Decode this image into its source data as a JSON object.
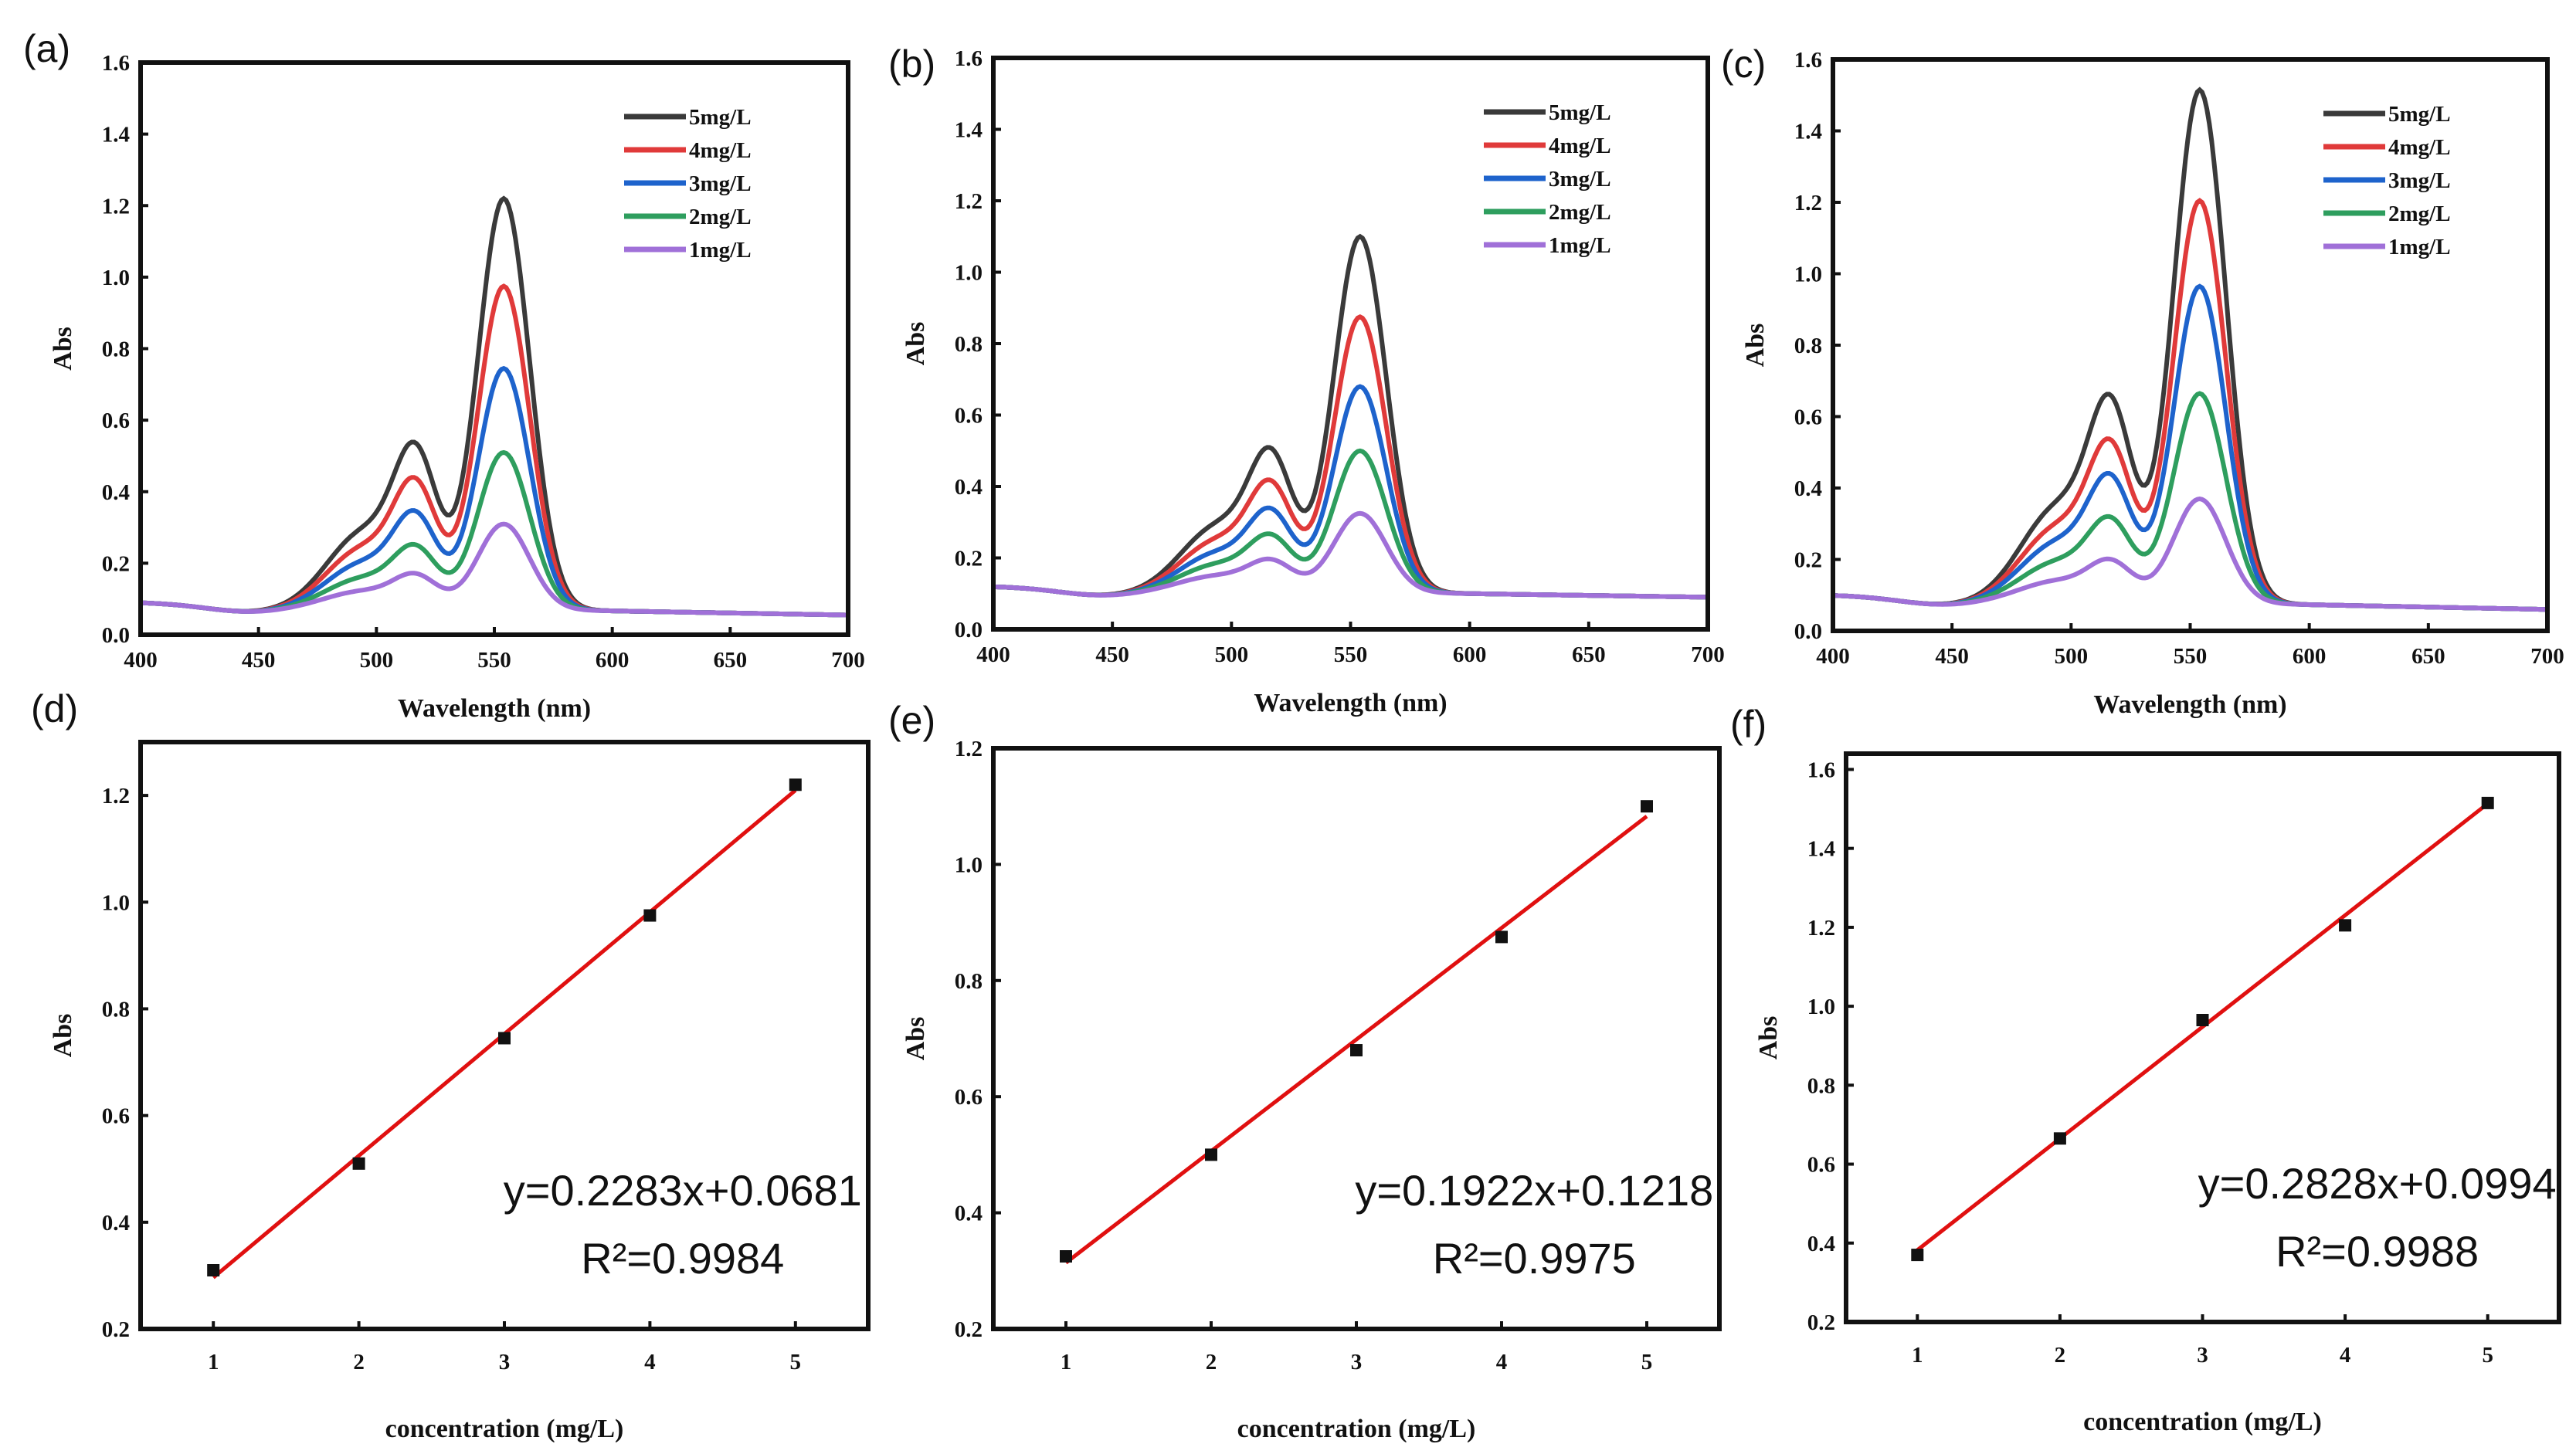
{
  "chart_data": [
    {
      "panel": "(a)",
      "type": "line",
      "xlabel": "Wavelength (nm)",
      "ylabel": "Abs",
      "xlim": [
        400,
        700
      ],
      "ylim": [
        0,
        1.6
      ],
      "xticks": [
        400,
        450,
        500,
        550,
        600,
        650,
        700
      ],
      "yticks": [
        0.0,
        0.2,
        0.4,
        0.6,
        0.8,
        1.0,
        1.2,
        1.4,
        1.6
      ],
      "legend_position": "top-right",
      "peak_wavelength": 554,
      "baseline_start": 0.09,
      "baseline_end": 0.055,
      "series": [
        {
          "name": "5mg/L",
          "color": "#3a3a3a",
          "peak": 1.22
        },
        {
          "name": "4mg/L",
          "color": "#e03a3a",
          "peak": 0.975
        },
        {
          "name": "3mg/L",
          "color": "#1e63cc",
          "peak": 0.745
        },
        {
          "name": "2mg/L",
          "color": "#2e9e5e",
          "peak": 0.51
        },
        {
          "name": "1mg/L",
          "color": "#a070d8",
          "peak": 0.31
        }
      ]
    },
    {
      "panel": "(b)",
      "type": "line",
      "xlabel": "Wavelength (nm)",
      "ylabel": "Abs",
      "xlim": [
        400,
        700
      ],
      "ylim": [
        0,
        1.6
      ],
      "xticks": [
        400,
        450,
        500,
        550,
        600,
        650,
        700
      ],
      "yticks": [
        0.0,
        0.2,
        0.4,
        0.6,
        0.8,
        1.0,
        1.2,
        1.4,
        1.6
      ],
      "legend_position": "top-right",
      "peak_wavelength": 554,
      "baseline_start": 0.12,
      "baseline_end": 0.09,
      "series": [
        {
          "name": "5mg/L",
          "color": "#3a3a3a",
          "peak": 1.1
        },
        {
          "name": "4mg/L",
          "color": "#e03a3a",
          "peak": 0.875
        },
        {
          "name": "3mg/L",
          "color": "#1e63cc",
          "peak": 0.68
        },
        {
          "name": "2mg/L",
          "color": "#2e9e5e",
          "peak": 0.5
        },
        {
          "name": "1mg/L",
          "color": "#a070d8",
          "peak": 0.325
        }
      ]
    },
    {
      "panel": "(c)",
      "type": "line",
      "xlabel": "Wavelength (nm)",
      "ylabel": "Abs",
      "xlim": [
        400,
        700
      ],
      "ylim": [
        0,
        1.6
      ],
      "xticks": [
        400,
        450,
        500,
        550,
        600,
        650,
        700
      ],
      "yticks": [
        0.0,
        0.2,
        0.4,
        0.6,
        0.8,
        1.0,
        1.2,
        1.4,
        1.6
      ],
      "legend_position": "top-right",
      "peak_wavelength": 554,
      "baseline_start": 0.1,
      "baseline_end": 0.06,
      "series": [
        {
          "name": "5mg/L",
          "color": "#3a3a3a",
          "peak": 1.515
        },
        {
          "name": "4mg/L",
          "color": "#e03a3a",
          "peak": 1.205
        },
        {
          "name": "3mg/L",
          "color": "#1e63cc",
          "peak": 0.965
        },
        {
          "name": "2mg/L",
          "color": "#2e9e5e",
          "peak": 0.665
        },
        {
          "name": "1mg/L",
          "color": "#a070d8",
          "peak": 0.37
        }
      ]
    },
    {
      "panel": "(d)",
      "type": "scatter",
      "xlabel": "concentration (mg/L)",
      "ylabel": "Abs",
      "xlim": [
        0.5,
        5.5
      ],
      "ylim": [
        0.2,
        1.3
      ],
      "xticks": [
        1,
        2,
        3,
        4,
        5
      ],
      "yticks": [
        0.2,
        0.4,
        0.6,
        0.8,
        1.0,
        1.2
      ],
      "x": [
        1,
        2,
        3,
        4,
        5
      ],
      "y": [
        0.31,
        0.51,
        0.745,
        0.975,
        1.22
      ],
      "fit": {
        "slope": 0.2283,
        "intercept": 0.0681,
        "color": "#e01010"
      },
      "equation": "y=0.2283x+0.0681",
      "r2": "R²=0.9984"
    },
    {
      "panel": "(e)",
      "type": "scatter",
      "xlabel": "concentration (mg/L)",
      "ylabel": "Abs",
      "xlim": [
        0.5,
        5.5
      ],
      "ylim": [
        0.2,
        1.2
      ],
      "xticks": [
        1,
        2,
        3,
        4,
        5
      ],
      "yticks": [
        0.2,
        0.4,
        0.6,
        0.8,
        1.0,
        1.2
      ],
      "x": [
        1,
        2,
        3,
        4,
        5
      ],
      "y": [
        0.325,
        0.5,
        0.68,
        0.875,
        1.1
      ],
      "fit": {
        "slope": 0.1922,
        "intercept": 0.1218,
        "color": "#e01010"
      },
      "equation": "y=0.1922x+0.1218",
      "r2": "R²=0.9975"
    },
    {
      "panel": "(f)",
      "type": "scatter",
      "xlabel": "concentration (mg/L)",
      "ylabel": "Abs",
      "xlim": [
        0.5,
        5.5
      ],
      "ylim": [
        0.2,
        1.64
      ],
      "xticks": [
        1,
        2,
        3,
        4,
        5
      ],
      "yticks": [
        0.2,
        0.4,
        0.6,
        0.8,
        1.0,
        1.2,
        1.4,
        1.6
      ],
      "x": [
        1,
        2,
        3,
        4,
        5
      ],
      "y": [
        0.37,
        0.665,
        0.965,
        1.205,
        1.515
      ],
      "fit": {
        "slope": 0.2828,
        "intercept": 0.0994,
        "color": "#e01010"
      },
      "equation": "y=0.2828x+0.0994",
      "r2": "R²=0.9988"
    }
  ]
}
